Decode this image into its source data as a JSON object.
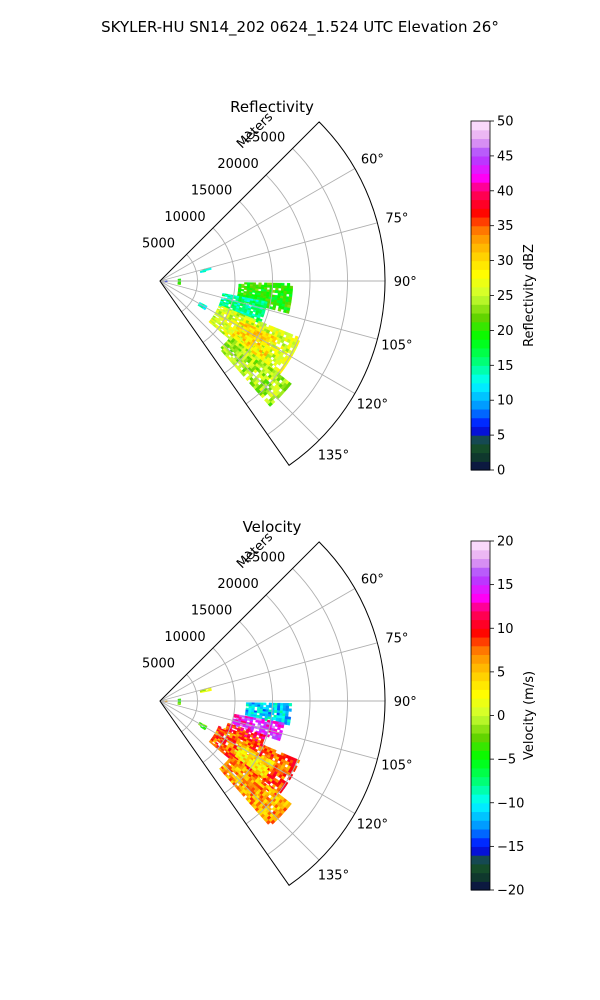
{
  "figure": {
    "suptitle": "SKYLER-HU  SN14_202  0624_1.524 UTC Elevation 26°"
  },
  "chart_data": [
    {
      "type": "heatmap",
      "subtype": "polar-sector",
      "title": "Reflectivity",
      "range_label": "Meters",
      "azimuth_range_deg": [
        45,
        145
      ],
      "range_max_m": 30000,
      "range_ticks": [
        5000,
        10000,
        15000,
        20000,
        25000
      ],
      "range_tick_labels": [
        "5000",
        "10000",
        "15000",
        "20000",
        "25000"
      ],
      "azimuth_ticks": [
        60,
        75,
        90,
        105,
        120,
        135
      ],
      "azimuth_tick_labels": [
        "60°",
        "75°",
        "90°",
        "105°",
        "120°",
        "135°"
      ],
      "grid": true,
      "colorbar": {
        "label": "Reflectivity dBZ",
        "range": [
          0,
          50
        ],
        "ticks": [
          0,
          5,
          10,
          15,
          20,
          25,
          30,
          35,
          40,
          45,
          50
        ],
        "tick_labels": [
          "0",
          "5",
          "10",
          "15",
          "20",
          "25",
          "30",
          "35",
          "40",
          "45",
          "50"
        ]
      },
      "regions": [
        {
          "az": [
            91,
            104
          ],
          "r": [
            10500,
            17500
          ],
          "value": 20
        },
        {
          "az": [
            101,
            113
          ],
          "r": [
            8500,
            14500
          ],
          "value": 15
        },
        {
          "az": [
            112,
            129
          ],
          "r": [
            8500,
            20000
          ],
          "value": 26
        },
        {
          "az": [
            116,
            127
          ],
          "r": [
            12000,
            17000
          ],
          "value": 30
        },
        {
          "az": [
            128,
            138
          ],
          "r": [
            12000,
            22000
          ],
          "value": 24
        },
        {
          "az": [
            75,
            78
          ],
          "r": [
            5500,
            7000
          ],
          "value": 14
        },
        {
          "az": [
            118,
            122
          ],
          "r": [
            6000,
            7000
          ],
          "value": 14
        },
        {
          "az": [
            84,
            100
          ],
          "r": [
            2400,
            2700
          ],
          "value": 20
        },
        {
          "az": [
            86,
            96
          ],
          "r": [
            600,
            900
          ],
          "value": 8
        }
      ]
    },
    {
      "type": "heatmap",
      "subtype": "polar-sector",
      "title": "Velocity",
      "range_label": "Meters",
      "azimuth_range_deg": [
        45,
        145
      ],
      "range_max_m": 30000,
      "range_ticks": [
        5000,
        10000,
        15000,
        20000,
        25000
      ],
      "range_tick_labels": [
        "5000",
        "10000",
        "15000",
        "20000",
        "25000"
      ],
      "azimuth_ticks": [
        60,
        75,
        90,
        105,
        120,
        135
      ],
      "azimuth_tick_labels": [
        "60°",
        "75°",
        "90°",
        "105°",
        "120°",
        "135°"
      ],
      "grid": true,
      "colorbar": {
        "label": "Velocity (m/s)",
        "range": [
          -20,
          20
        ],
        "ticks": [
          -20,
          -15,
          -10,
          -5,
          0,
          5,
          10,
          15,
          20
        ],
        "tick_labels": [
          "−20",
          "−15",
          "−10",
          "−5",
          "0",
          "5",
          "10",
          "15",
          "20"
        ]
      },
      "regions": [
        {
          "az": [
            91,
            100
          ],
          "r": [
            11500,
            17500
          ],
          "value": -11
        },
        {
          "az": [
            100,
            108
          ],
          "r": [
            10000,
            16500
          ],
          "value": 15
        },
        {
          "az": [
            108,
            115
          ],
          "r": [
            9500,
            14500
          ],
          "value": 10
        },
        {
          "az": [
            113,
            129
          ],
          "r": [
            8500,
            20000
          ],
          "value": 8
        },
        {
          "az": [
            118,
            126
          ],
          "r": [
            12000,
            17000
          ],
          "value": 3
        },
        {
          "az": [
            128,
            138
          ],
          "r": [
            12000,
            22000
          ],
          "value": 6
        },
        {
          "az": [
            75,
            78
          ],
          "r": [
            5500,
            7000
          ],
          "value": 1
        },
        {
          "az": [
            118,
            122
          ],
          "r": [
            6000,
            7000
          ],
          "value": -3
        },
        {
          "az": [
            84,
            100
          ],
          "r": [
            2400,
            2700
          ],
          "value": -3
        },
        {
          "az": [
            86,
            96
          ],
          "r": [
            600,
            900
          ],
          "value": 4
        }
      ]
    }
  ]
}
